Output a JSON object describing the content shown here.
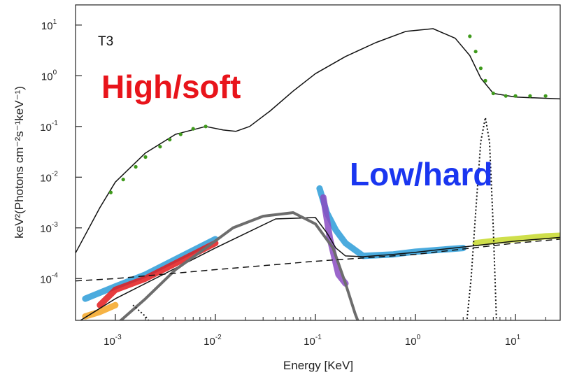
{
  "chart_data": {
    "type": "line",
    "title": "",
    "panel_label": "T3",
    "xlabel": "Energy [KeV]",
    "ylabel": "keV²(Photons cm⁻²s⁻¹keV⁻¹)",
    "xscale": "log",
    "yscale": "log",
    "xlim": [
      0.0004,
      28
    ],
    "ylim": [
      1.5e-05,
      25
    ],
    "grid": false,
    "x_ticks": [
      {
        "base": "10",
        "exp": "-3",
        "value": 0.001
      },
      {
        "base": "10",
        "exp": "-2",
        "value": 0.01
      },
      {
        "base": "10",
        "exp": "-1",
        "value": 0.1
      },
      {
        "base": "10",
        "exp": "0",
        "value": 1
      },
      {
        "base": "10",
        "exp": "1",
        "value": 10
      }
    ],
    "y_ticks": [
      {
        "base": "10",
        "exp": "1",
        "value": 10
      },
      {
        "base": "10",
        "exp": "0",
        "value": 1
      },
      {
        "base": "10",
        "exp": "-1",
        "value": 0.1
      },
      {
        "base": "10",
        "exp": "-2",
        "value": 0.01
      },
      {
        "base": "10",
        "exp": "-3",
        "value": 0.001
      },
      {
        "base": "10",
        "exp": "-4",
        "value": 0.0001
      }
    ],
    "annotations": [
      {
        "text": "High/soft",
        "color": "#e8141b"
      },
      {
        "text": "Low/hard",
        "color": "#1a36f0"
      }
    ],
    "series": [
      {
        "style": "solid",
        "color": "#111111",
        "x": [
          0.0004,
          0.0007,
          0.001,
          0.002,
          0.004,
          0.008,
          0.012,
          0.016,
          0.022,
          0.035,
          0.06,
          0.1,
          0.2,
          0.4,
          0.8,
          1.5,
          2.5,
          3.5,
          4.5,
          6,
          10,
          20,
          28
        ],
        "y": [
          0.00032,
          0.0025,
          0.008,
          0.03,
          0.07,
          0.1,
          0.085,
          0.08,
          0.1,
          0.2,
          0.5,
          1.1,
          2.4,
          4.5,
          7.5,
          8.5,
          5.5,
          2.5,
          0.9,
          0.45,
          0.38,
          0.36,
          0.35
        ]
      },
      {
        "style": "points",
        "color": "#3f9a1c",
        "x": [
          0.0009,
          0.0012,
          0.0016,
          0.002,
          0.0028,
          0.0035,
          0.0045,
          0.006,
          0.008,
          3.5,
          4,
          4.5,
          5,
          6,
          8,
          10,
          14,
          20
        ],
        "y": [
          0.005,
          0.009,
          0.016,
          0.025,
          0.04,
          0.055,
          0.07,
          0.09,
          0.1,
          6,
          3,
          1.4,
          0.8,
          0.45,
          0.4,
          0.4,
          0.4,
          0.4
        ]
      },
      {
        "style": "solid",
        "color": "#111111",
        "x": [
          0.0004,
          0.001,
          0.003,
          0.01,
          0.04,
          0.1,
          0.13,
          0.16,
          0.2,
          0.3,
          0.6,
          1,
          3,
          10,
          28
        ],
        "y": [
          1.3e-05,
          4e-05,
          0.00012,
          0.0004,
          0.0015,
          0.0016,
          0.0008,
          0.0004,
          0.00028,
          0.00027,
          0.0003,
          0.00033,
          0.00042,
          0.00055,
          0.00065
        ]
      },
      {
        "style": "solid-gray",
        "color": "#6d6d6d",
        "x": [
          0.001,
          0.002,
          0.004,
          0.008,
          0.015,
          0.03,
          0.06,
          0.1,
          0.15,
          0.2,
          0.25,
          0.3
        ],
        "y": [
          1.2e-05,
          4e-05,
          0.00015,
          0.0004,
          0.001,
          0.0017,
          0.002,
          0.0012,
          0.0004,
          8e-05,
          2e-05,
          8e-06
        ]
      },
      {
        "style": "dashed",
        "color": "#111111",
        "x": [
          0.0004,
          0.001,
          0.01,
          0.1,
          1,
          10,
          28
        ],
        "y": [
          9e-05,
          0.0001,
          0.00015,
          0.00022,
          0.0003,
          0.0005,
          0.0006
        ]
      },
      {
        "style": "dotted",
        "color": "#111111",
        "x": [
          3.2,
          3.6,
          4,
          4.5,
          5,
          5.5,
          6,
          6.5
        ],
        "y": [
          1e-05,
          0.0001,
          0.002,
          0.05,
          0.15,
          0.05,
          0.001,
          1e-05
        ]
      },
      {
        "style": "dotted",
        "color": "#111111",
        "x": [
          0.0015,
          0.002,
          0.0025
        ],
        "y": [
          3e-05,
          1.8e-05,
          1e-05
        ]
      }
    ],
    "data_bands": [
      {
        "color": "#2b9cd8",
        "x": [
          0.0005,
          0.001,
          0.002,
          0.005,
          0.01
        ],
        "y": [
          4e-05,
          7e-05,
          0.00012,
          0.0003,
          0.0006
        ]
      },
      {
        "color": "#e31a1c",
        "x": [
          0.0007,
          0.001,
          0.002,
          0.005,
          0.01
        ],
        "y": [
          3e-05,
          6e-05,
          0.0001,
          0.00025,
          0.0005
        ]
      },
      {
        "color": "#f5a623",
        "x": [
          0.0005,
          0.0007,
          0.001
        ],
        "y": [
          1.8e-05,
          2.2e-05,
          3e-05
        ]
      },
      {
        "color": "#2b9cd8",
        "x": [
          0.11,
          0.13,
          0.16,
          0.2,
          0.3,
          0.6,
          1,
          3
        ],
        "y": [
          0.006,
          0.002,
          0.0009,
          0.0005,
          0.00028,
          0.0003,
          0.00034,
          0.0004
        ]
      },
      {
        "color": "#8a4bc2",
        "x": [
          0.12,
          0.14,
          0.17,
          0.2
        ],
        "y": [
          0.004,
          0.0006,
          0.00012,
          8e-05
        ]
      },
      {
        "color": "#c7d92c",
        "x": [
          4,
          6,
          10,
          20,
          28
        ],
        "y": [
          0.0005,
          0.00055,
          0.0006,
          0.00068,
          0.0007
        ]
      }
    ]
  }
}
